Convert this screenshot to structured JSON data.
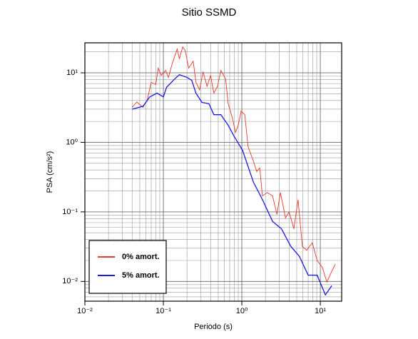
{
  "chart_data": {
    "type": "line",
    "title": "Sitio SSMD",
    "x_label": "Periodo (s)",
    "y_label": "PSA (cm/s²)",
    "log_x": true,
    "log_y": true,
    "grid": true,
    "legend": "lower left",
    "xlim": [
      0.01,
      18.7
    ],
    "ylim": [
      0.0052,
      27
    ],
    "xticks": [
      {
        "value": 0.01,
        "label": "10⁻²"
      },
      {
        "value": 0.1,
        "label": "10⁻¹"
      },
      {
        "value": 1,
        "label": "10⁰"
      },
      {
        "value": 10,
        "label": "10¹"
      }
    ],
    "yticks": [
      {
        "value": 0.01,
        "label": "10⁻²"
      },
      {
        "value": 0.1,
        "label": "10⁻¹"
      },
      {
        "value": 1,
        "label": "10⁰"
      },
      {
        "value": 10,
        "label": "10¹"
      }
    ],
    "series": [
      {
        "name": "0% amort.",
        "color": "#e8372c",
        "x": [
          0.04,
          0.046,
          0.055,
          0.062,
          0.07,
          0.08,
          0.086,
          0.094,
          0.107,
          0.116,
          0.13,
          0.15,
          0.16,
          0.176,
          0.19,
          0.21,
          0.24,
          0.26,
          0.29,
          0.32,
          0.36,
          0.4,
          0.44,
          0.49,
          0.54,
          0.62,
          0.67,
          0.76,
          0.83,
          0.9,
          0.98,
          1.09,
          1.2,
          1.4,
          1.55,
          1.69,
          1.83,
          2.1,
          2.46,
          2.8,
          3.1,
          3.6,
          4.0,
          4.6,
          5.2,
          5.9,
          6.7,
          7.9,
          9.1,
          10.6,
          12.1,
          14.0,
          15.5
        ],
        "values": [
          3.2,
          3.8,
          3.2,
          4.0,
          7.3,
          6.8,
          11.7,
          9.2,
          10.8,
          8.6,
          13.7,
          22,
          15.8,
          23.6,
          21,
          11.7,
          14.7,
          7.3,
          5.7,
          10.4,
          6.4,
          9.2,
          5.1,
          6.4,
          10.8,
          8.2,
          3.6,
          2.2,
          1.39,
          1.76,
          2.8,
          2.5,
          0.87,
          0.54,
          0.38,
          0.43,
          0.17,
          0.19,
          0.17,
          0.092,
          0.19,
          0.082,
          0.1,
          0.057,
          0.15,
          0.032,
          0.028,
          0.036,
          0.02,
          0.016,
          0.0098,
          0.014,
          0.0177
        ]
      },
      {
        "name": "5% amort.",
        "color": "#1a1adc",
        "x": [
          0.04,
          0.055,
          0.067,
          0.083,
          0.1,
          0.11,
          0.14,
          0.16,
          0.2,
          0.23,
          0.26,
          0.31,
          0.38,
          0.44,
          0.54,
          0.67,
          0.79,
          1.02,
          1.4,
          1.83,
          2.46,
          3.2,
          4.2,
          5.4,
          7.0,
          9.1,
          11.6,
          14.0
        ],
        "values": [
          3.0,
          3.3,
          4.5,
          5.1,
          4.5,
          6.2,
          8.2,
          9.4,
          8.6,
          7.8,
          5.1,
          3.75,
          3.6,
          2.5,
          2.5,
          1.76,
          1.24,
          0.77,
          0.27,
          0.15,
          0.073,
          0.057,
          0.032,
          0.023,
          0.0123,
          0.0123,
          0.0064,
          0.0087
        ]
      }
    ]
  }
}
